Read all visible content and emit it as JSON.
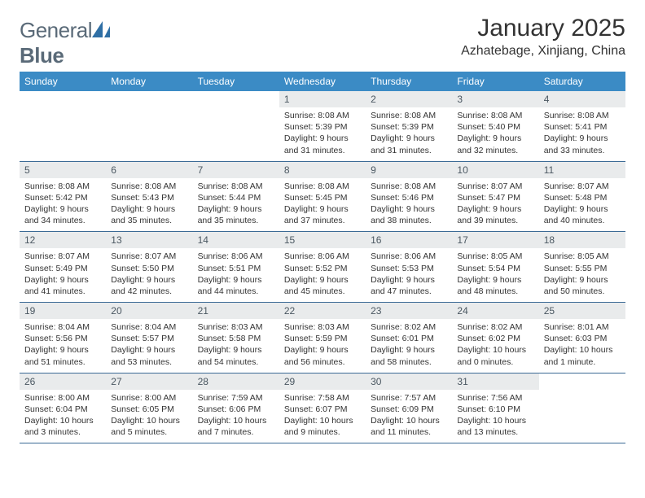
{
  "brand": {
    "name_part1": "General",
    "name_part2": "Blue",
    "logo_color": "#2f6fa5"
  },
  "header": {
    "month_title": "January 2025",
    "location": "Azhatebage, Xinjiang, China"
  },
  "styling": {
    "header_bg": "#3b8bc5",
    "header_fg": "#ffffff",
    "row_divider": "#3b6a95",
    "daynum_bg": "#e9ebec",
    "daynum_fg": "#4a5761",
    "body_fg": "#333333",
    "page_bg": "#ffffff",
    "title_fontsize": 30,
    "location_fontsize": 16,
    "dayheader_fontsize": 12,
    "cell_fontsize": 10.5
  },
  "calendar": {
    "day_headers": [
      "Sunday",
      "Monday",
      "Tuesday",
      "Wednesday",
      "Thursday",
      "Friday",
      "Saturday"
    ],
    "weeks": [
      [
        null,
        null,
        null,
        {
          "n": "1",
          "sunrise": "Sunrise: 8:08 AM",
          "sunset": "Sunset: 5:39 PM",
          "daylight": "Daylight: 9 hours and 31 minutes."
        },
        {
          "n": "2",
          "sunrise": "Sunrise: 8:08 AM",
          "sunset": "Sunset: 5:39 PM",
          "daylight": "Daylight: 9 hours and 31 minutes."
        },
        {
          "n": "3",
          "sunrise": "Sunrise: 8:08 AM",
          "sunset": "Sunset: 5:40 PM",
          "daylight": "Daylight: 9 hours and 32 minutes."
        },
        {
          "n": "4",
          "sunrise": "Sunrise: 8:08 AM",
          "sunset": "Sunset: 5:41 PM",
          "daylight": "Daylight: 9 hours and 33 minutes."
        }
      ],
      [
        {
          "n": "5",
          "sunrise": "Sunrise: 8:08 AM",
          "sunset": "Sunset: 5:42 PM",
          "daylight": "Daylight: 9 hours and 34 minutes."
        },
        {
          "n": "6",
          "sunrise": "Sunrise: 8:08 AM",
          "sunset": "Sunset: 5:43 PM",
          "daylight": "Daylight: 9 hours and 35 minutes."
        },
        {
          "n": "7",
          "sunrise": "Sunrise: 8:08 AM",
          "sunset": "Sunset: 5:44 PM",
          "daylight": "Daylight: 9 hours and 35 minutes."
        },
        {
          "n": "8",
          "sunrise": "Sunrise: 8:08 AM",
          "sunset": "Sunset: 5:45 PM",
          "daylight": "Daylight: 9 hours and 37 minutes."
        },
        {
          "n": "9",
          "sunrise": "Sunrise: 8:08 AM",
          "sunset": "Sunset: 5:46 PM",
          "daylight": "Daylight: 9 hours and 38 minutes."
        },
        {
          "n": "10",
          "sunrise": "Sunrise: 8:07 AM",
          "sunset": "Sunset: 5:47 PM",
          "daylight": "Daylight: 9 hours and 39 minutes."
        },
        {
          "n": "11",
          "sunrise": "Sunrise: 8:07 AM",
          "sunset": "Sunset: 5:48 PM",
          "daylight": "Daylight: 9 hours and 40 minutes."
        }
      ],
      [
        {
          "n": "12",
          "sunrise": "Sunrise: 8:07 AM",
          "sunset": "Sunset: 5:49 PM",
          "daylight": "Daylight: 9 hours and 41 minutes."
        },
        {
          "n": "13",
          "sunrise": "Sunrise: 8:07 AM",
          "sunset": "Sunset: 5:50 PM",
          "daylight": "Daylight: 9 hours and 42 minutes."
        },
        {
          "n": "14",
          "sunrise": "Sunrise: 8:06 AM",
          "sunset": "Sunset: 5:51 PM",
          "daylight": "Daylight: 9 hours and 44 minutes."
        },
        {
          "n": "15",
          "sunrise": "Sunrise: 8:06 AM",
          "sunset": "Sunset: 5:52 PM",
          "daylight": "Daylight: 9 hours and 45 minutes."
        },
        {
          "n": "16",
          "sunrise": "Sunrise: 8:06 AM",
          "sunset": "Sunset: 5:53 PM",
          "daylight": "Daylight: 9 hours and 47 minutes."
        },
        {
          "n": "17",
          "sunrise": "Sunrise: 8:05 AM",
          "sunset": "Sunset: 5:54 PM",
          "daylight": "Daylight: 9 hours and 48 minutes."
        },
        {
          "n": "18",
          "sunrise": "Sunrise: 8:05 AM",
          "sunset": "Sunset: 5:55 PM",
          "daylight": "Daylight: 9 hours and 50 minutes."
        }
      ],
      [
        {
          "n": "19",
          "sunrise": "Sunrise: 8:04 AM",
          "sunset": "Sunset: 5:56 PM",
          "daylight": "Daylight: 9 hours and 51 minutes."
        },
        {
          "n": "20",
          "sunrise": "Sunrise: 8:04 AM",
          "sunset": "Sunset: 5:57 PM",
          "daylight": "Daylight: 9 hours and 53 minutes."
        },
        {
          "n": "21",
          "sunrise": "Sunrise: 8:03 AM",
          "sunset": "Sunset: 5:58 PM",
          "daylight": "Daylight: 9 hours and 54 minutes."
        },
        {
          "n": "22",
          "sunrise": "Sunrise: 8:03 AM",
          "sunset": "Sunset: 5:59 PM",
          "daylight": "Daylight: 9 hours and 56 minutes."
        },
        {
          "n": "23",
          "sunrise": "Sunrise: 8:02 AM",
          "sunset": "Sunset: 6:01 PM",
          "daylight": "Daylight: 9 hours and 58 minutes."
        },
        {
          "n": "24",
          "sunrise": "Sunrise: 8:02 AM",
          "sunset": "Sunset: 6:02 PM",
          "daylight": "Daylight: 10 hours and 0 minutes."
        },
        {
          "n": "25",
          "sunrise": "Sunrise: 8:01 AM",
          "sunset": "Sunset: 6:03 PM",
          "daylight": "Daylight: 10 hours and 1 minute."
        }
      ],
      [
        {
          "n": "26",
          "sunrise": "Sunrise: 8:00 AM",
          "sunset": "Sunset: 6:04 PM",
          "daylight": "Daylight: 10 hours and 3 minutes."
        },
        {
          "n": "27",
          "sunrise": "Sunrise: 8:00 AM",
          "sunset": "Sunset: 6:05 PM",
          "daylight": "Daylight: 10 hours and 5 minutes."
        },
        {
          "n": "28",
          "sunrise": "Sunrise: 7:59 AM",
          "sunset": "Sunset: 6:06 PM",
          "daylight": "Daylight: 10 hours and 7 minutes."
        },
        {
          "n": "29",
          "sunrise": "Sunrise: 7:58 AM",
          "sunset": "Sunset: 6:07 PM",
          "daylight": "Daylight: 10 hours and 9 minutes."
        },
        {
          "n": "30",
          "sunrise": "Sunrise: 7:57 AM",
          "sunset": "Sunset: 6:09 PM",
          "daylight": "Daylight: 10 hours and 11 minutes."
        },
        {
          "n": "31",
          "sunrise": "Sunrise: 7:56 AM",
          "sunset": "Sunset: 6:10 PM",
          "daylight": "Daylight: 10 hours and 13 minutes."
        },
        null
      ]
    ]
  }
}
